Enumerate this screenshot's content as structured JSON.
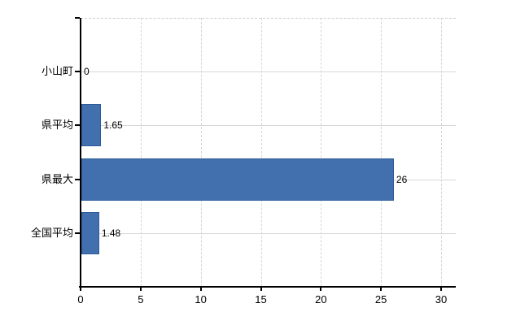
{
  "chart_data": {
    "type": "bar",
    "orientation": "horizontal",
    "title": "",
    "categories": [
      "小山町",
      "県平均",
      "県最大",
      "全国平均"
    ],
    "values": [
      0,
      1.65,
      26,
      1.48
    ],
    "value_labels": [
      "0",
      "1.65",
      "26",
      "1.48"
    ],
    "x_ticks": [
      0,
      5,
      10,
      15,
      20,
      25,
      30
    ],
    "x_tick_labels": [
      "0",
      "5",
      "10",
      "15",
      "20",
      "25",
      "30"
    ],
    "xlim": [
      0,
      31.25
    ],
    "grid": true,
    "legend": "none",
    "colors": {
      "bar_fill": "#4270ae",
      "bar_border": "#2d5c99",
      "axis": "#000000",
      "gridline": "#d5d9d5",
      "plot_border": "#c9cec9",
      "text": "#000000",
      "background": "#ffffff"
    }
  }
}
